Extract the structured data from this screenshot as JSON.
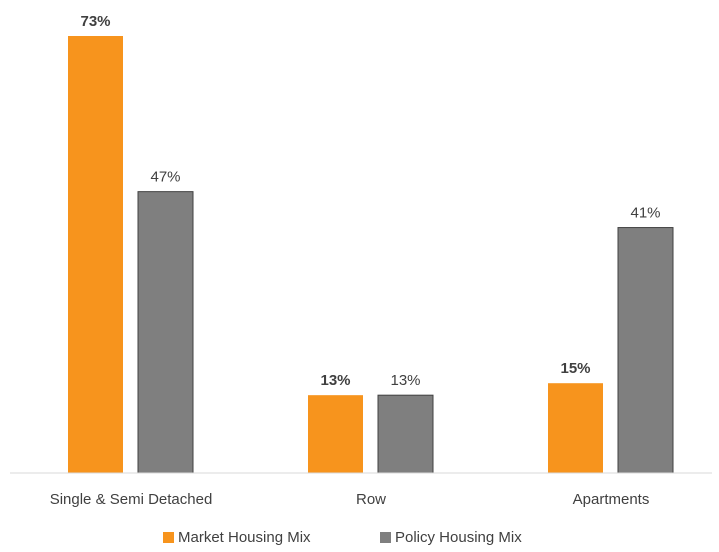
{
  "chart_data": {
    "type": "bar",
    "categories": [
      "Single & Semi Detached",
      "Row",
      "Apartments"
    ],
    "series": [
      {
        "name": "Market Housing Mix",
        "color": "#f7941d",
        "values": [
          73,
          13,
          15
        ],
        "value_labels": [
          "73%",
          "13%",
          "15%"
        ]
      },
      {
        "name": "Policy Housing Mix",
        "color": "#7f7f7f",
        "values": [
          47,
          13,
          41
        ],
        "value_labels": [
          "47%",
          "13%",
          "41%"
        ]
      }
    ]
  }
}
